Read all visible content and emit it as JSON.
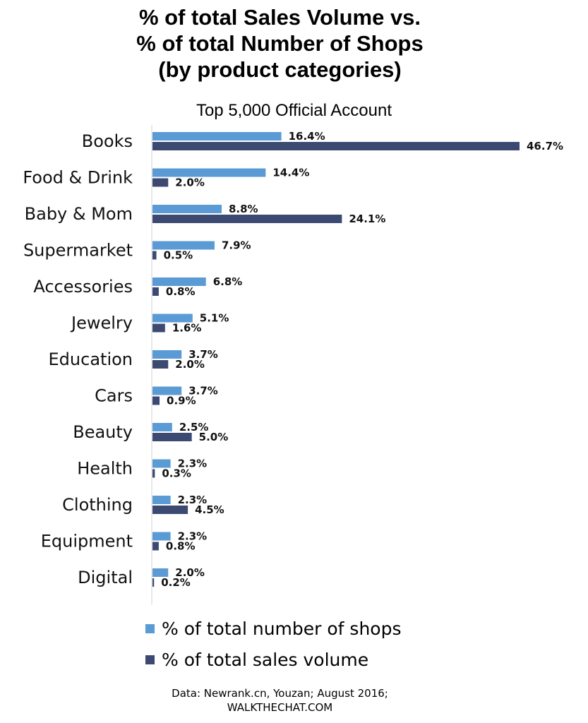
{
  "title_lines": [
    "% of total Sales Volume vs.",
    "% of total Number of Shops",
    "(by product categories)"
  ],
  "subtitle": "Top 5,000 Official Account",
  "colors": {
    "shops": "#5b9bd5",
    "sales": "#3c4a72",
    "axis": "#d0d0d0"
  },
  "chart_data": {
    "type": "bar",
    "orientation": "horizontal",
    "categories": [
      "Books",
      "Food & Drink",
      "Baby & Mom",
      "Supermarket",
      "Accessories",
      "Jewelry",
      "Education",
      "Cars",
      "Beauty",
      "Health",
      "Clothing",
      "Equipment",
      "Digital"
    ],
    "series": [
      {
        "name": "% of total number of shops",
        "values": [
          16.4,
          14.4,
          8.8,
          7.9,
          6.8,
          5.1,
          3.7,
          3.7,
          2.5,
          2.3,
          2.3,
          2.3,
          2.0
        ],
        "labels": [
          "16.4%",
          "14.4%",
          "8.8%",
          "7.9%",
          "6.8%",
          "5.1%",
          "3.7%",
          "3.7%",
          "2.5%",
          "2.3%",
          "2.3%",
          "2.3%",
          "2.0%"
        ]
      },
      {
        "name": "% of total sales volume",
        "values": [
          46.7,
          2.0,
          24.1,
          0.5,
          0.8,
          1.6,
          2.0,
          0.9,
          5.0,
          0.3,
          4.5,
          0.8,
          0.2
        ],
        "labels": [
          "46.7%",
          "2.0%",
          "24.1%",
          "0.5%",
          "0.8%",
          "1.6%",
          "2.0%",
          "0.9%",
          "5.0%",
          "0.3%",
          "4.5%",
          "0.8%",
          "0.2%"
        ]
      }
    ],
    "xlim": [
      0,
      46.7
    ],
    "grid": false,
    "legend_position": "bottom"
  },
  "legend": {
    "shops_label": "% of total number of shops",
    "sales_label": "% of total sales volume"
  },
  "source_lines": [
    "Data: Newrank.cn, Youzan; August 2016;",
    "WALKTHECHAT.COM"
  ]
}
